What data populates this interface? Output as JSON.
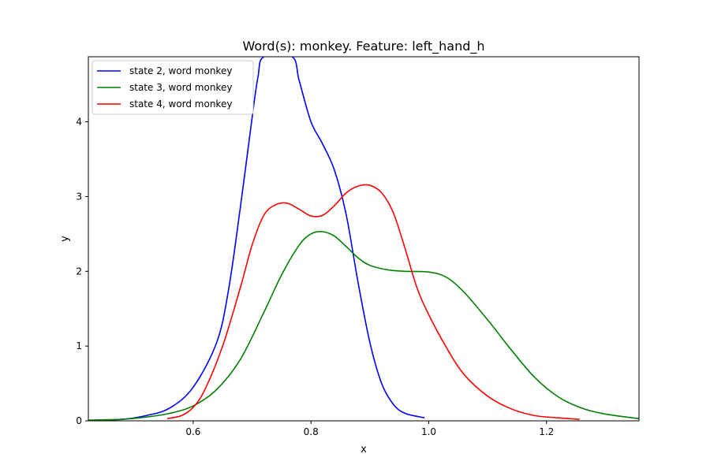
{
  "chart_data": {
    "type": "line",
    "title": "Word(s): monkey. Feature: left_hand_h",
    "xlabel": "x",
    "ylabel": "y",
    "xlim": [
      0.422,
      1.357
    ],
    "ylim": [
      0,
      4.87
    ],
    "xticks": [
      0.6,
      0.8,
      1.0,
      1.2
    ],
    "xtick_labels": [
      "0.6",
      "0.8",
      "1.0",
      "1.2"
    ],
    "yticks": [
      0,
      1,
      2,
      3,
      4
    ],
    "ytick_labels": [
      "0",
      "1",
      "2",
      "3",
      "4"
    ],
    "grid": false,
    "legend_position": "upper-left",
    "series": [
      {
        "name": "state 2, word monkey",
        "color": "#0000ff",
        "points": [
          [
            0.422,
            0.0
          ],
          [
            0.48,
            0.02
          ],
          [
            0.52,
            0.07
          ],
          [
            0.56,
            0.17
          ],
          [
            0.6,
            0.45
          ],
          [
            0.64,
            1.05
          ],
          [
            0.66,
            1.75
          ],
          [
            0.68,
            2.85
          ],
          [
            0.7,
            4.05
          ],
          [
            0.71,
            4.6
          ],
          [
            0.72,
            4.87
          ],
          [
            0.768,
            4.87
          ],
          [
            0.78,
            4.55
          ],
          [
            0.8,
            4.0
          ],
          [
            0.82,
            3.7
          ],
          [
            0.84,
            3.35
          ],
          [
            0.86,
            2.75
          ],
          [
            0.88,
            1.85
          ],
          [
            0.9,
            1.05
          ],
          [
            0.92,
            0.5
          ],
          [
            0.94,
            0.22
          ],
          [
            0.96,
            0.1
          ],
          [
            0.993,
            0.04
          ]
        ]
      },
      {
        "name": "state 3, word monkey",
        "color": "#008000",
        "points": [
          [
            0.422,
            0.01
          ],
          [
            0.48,
            0.02
          ],
          [
            0.52,
            0.05
          ],
          [
            0.56,
            0.1
          ],
          [
            0.6,
            0.2
          ],
          [
            0.64,
            0.42
          ],
          [
            0.68,
            0.82
          ],
          [
            0.72,
            1.45
          ],
          [
            0.75,
            1.95
          ],
          [
            0.78,
            2.35
          ],
          [
            0.8,
            2.5
          ],
          [
            0.82,
            2.53
          ],
          [
            0.84,
            2.47
          ],
          [
            0.86,
            2.33
          ],
          [
            0.88,
            2.18
          ],
          [
            0.9,
            2.08
          ],
          [
            0.93,
            2.02
          ],
          [
            0.96,
            2.0
          ],
          [
            1.0,
            1.99
          ],
          [
            1.03,
            1.92
          ],
          [
            1.06,
            1.72
          ],
          [
            1.1,
            1.35
          ],
          [
            1.14,
            0.95
          ],
          [
            1.18,
            0.58
          ],
          [
            1.22,
            0.32
          ],
          [
            1.26,
            0.17
          ],
          [
            1.3,
            0.09
          ],
          [
            1.357,
            0.03
          ]
        ]
      },
      {
        "name": "state 4, word monkey",
        "color": "#ff0000",
        "points": [
          [
            0.556,
            0.03
          ],
          [
            0.58,
            0.07
          ],
          [
            0.6,
            0.18
          ],
          [
            0.62,
            0.42
          ],
          [
            0.65,
            1.0
          ],
          [
            0.68,
            1.78
          ],
          [
            0.7,
            2.35
          ],
          [
            0.72,
            2.75
          ],
          [
            0.74,
            2.89
          ],
          [
            0.76,
            2.91
          ],
          [
            0.78,
            2.83
          ],
          [
            0.8,
            2.74
          ],
          [
            0.82,
            2.75
          ],
          [
            0.84,
            2.88
          ],
          [
            0.86,
            3.05
          ],
          [
            0.88,
            3.14
          ],
          [
            0.9,
            3.15
          ],
          [
            0.92,
            3.05
          ],
          [
            0.94,
            2.78
          ],
          [
            0.96,
            2.3
          ],
          [
            0.98,
            1.78
          ],
          [
            1.0,
            1.42
          ],
          [
            1.03,
            0.98
          ],
          [
            1.06,
            0.62
          ],
          [
            1.1,
            0.33
          ],
          [
            1.14,
            0.16
          ],
          [
            1.18,
            0.07
          ],
          [
            1.22,
            0.04
          ],
          [
            1.256,
            0.02
          ]
        ]
      }
    ]
  }
}
